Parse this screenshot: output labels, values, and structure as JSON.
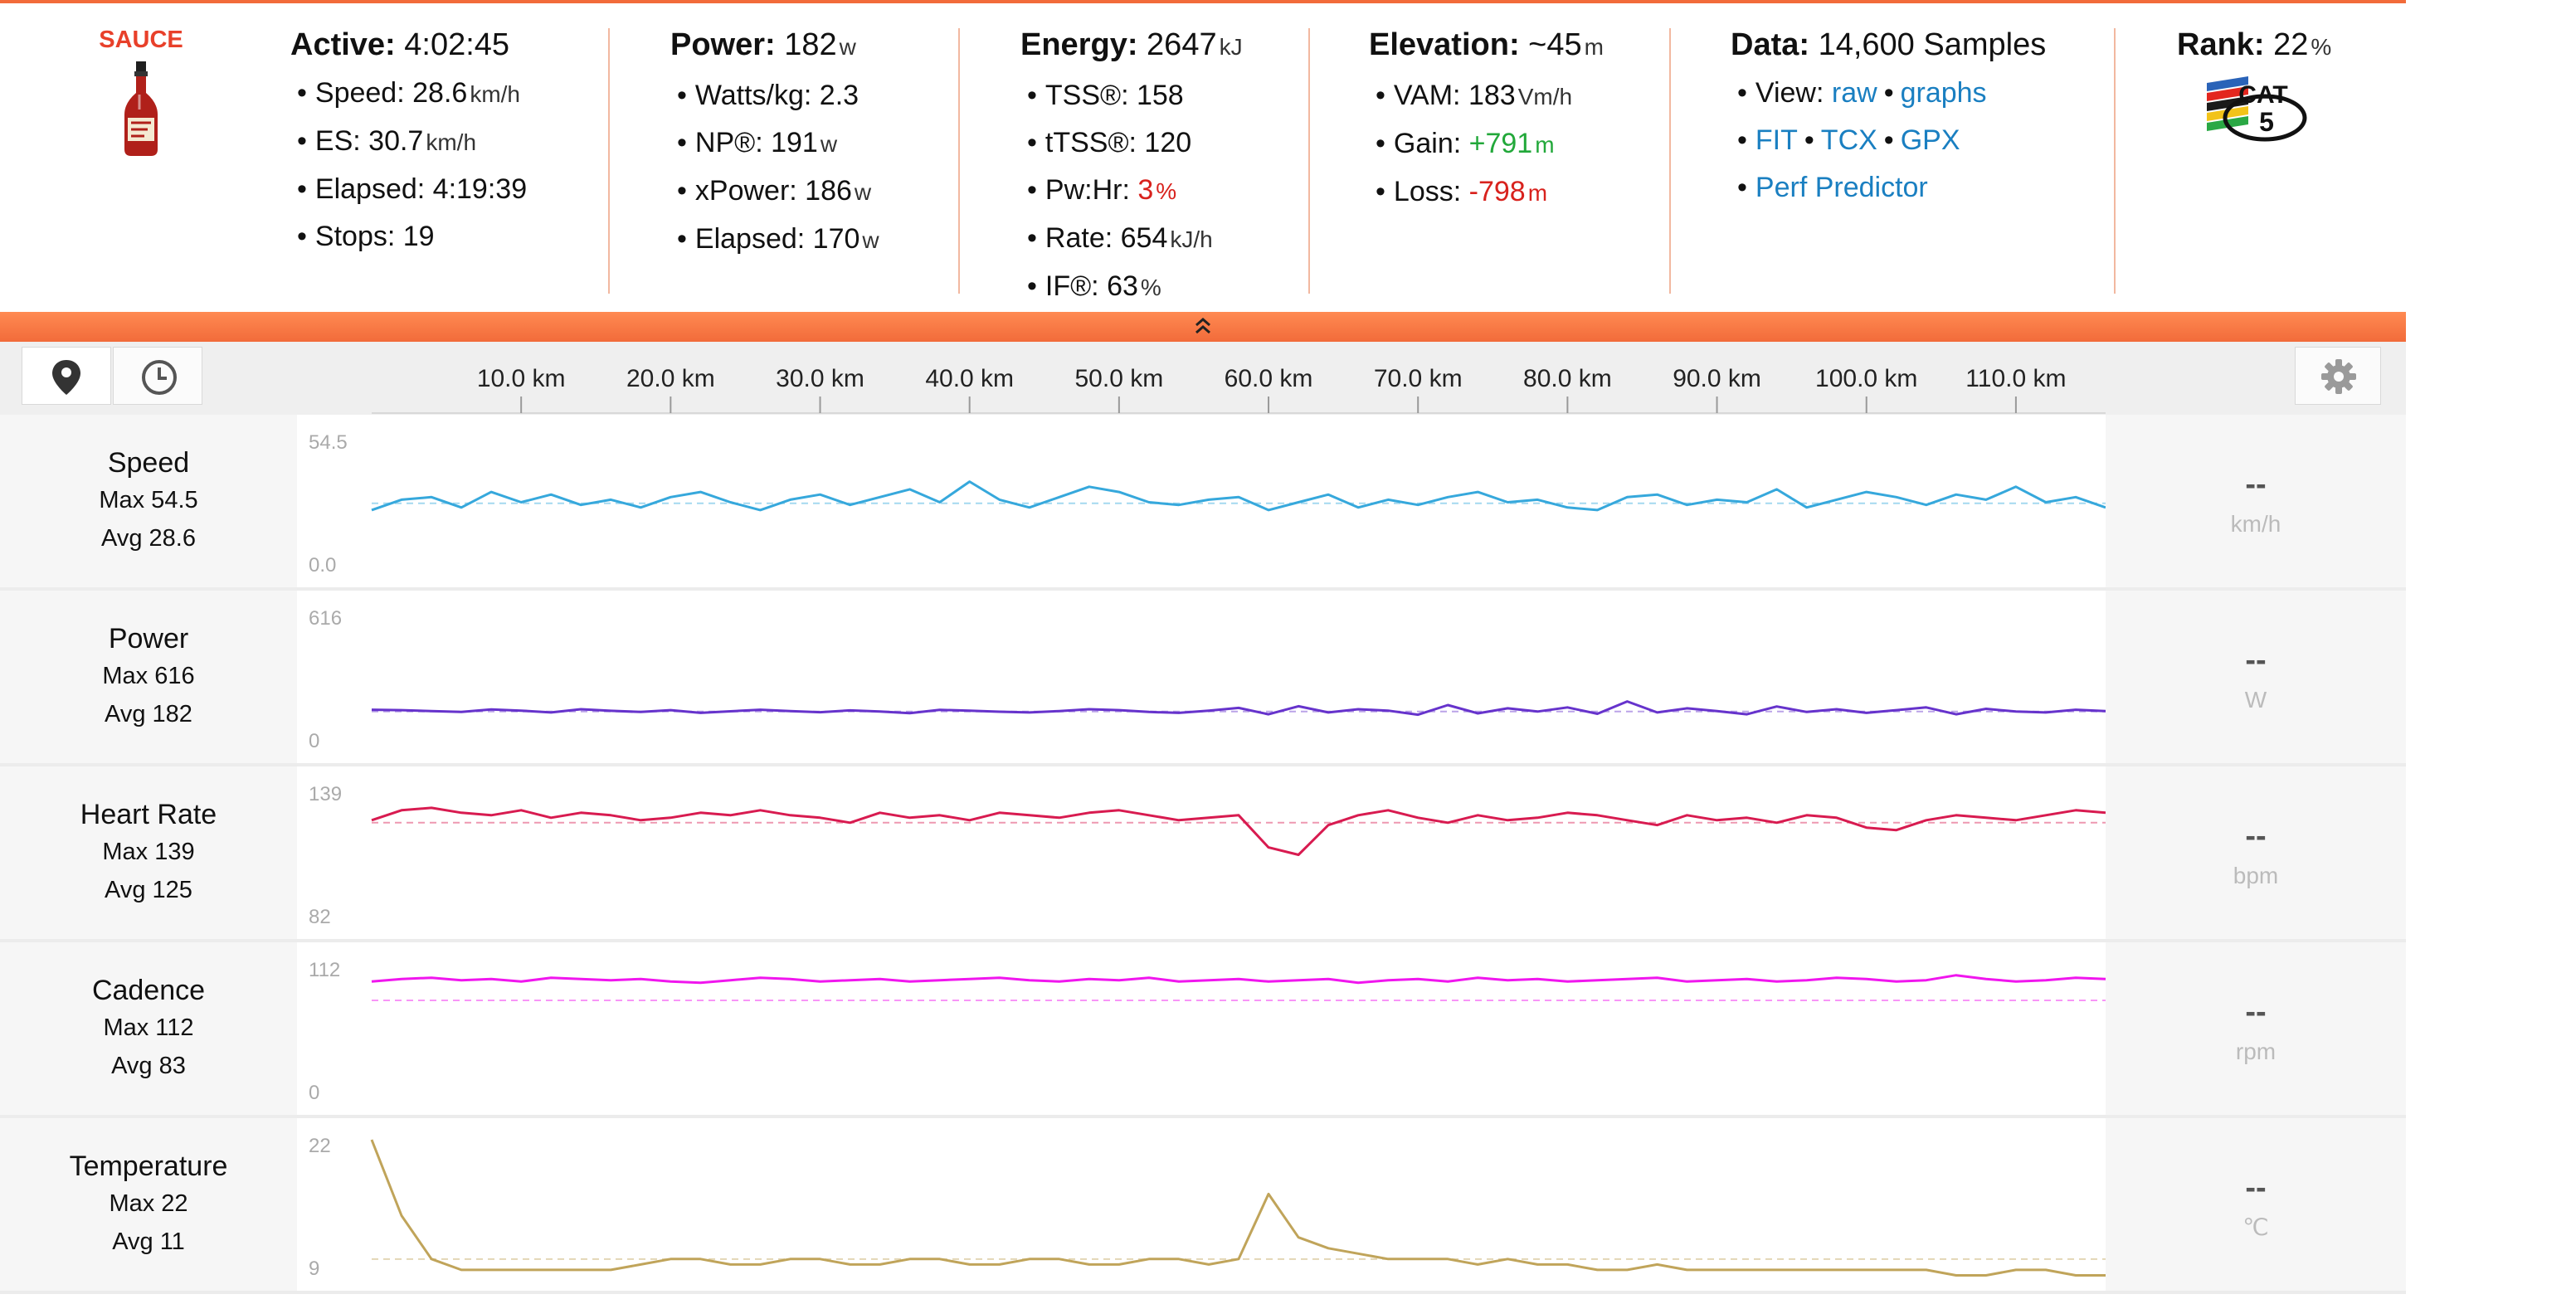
{
  "header": {
    "logo_text": "SAUCE",
    "groups": [
      {
        "id": "active",
        "label": "Active:",
        "value": "4:02:45",
        "unit": "",
        "items": [
          {
            "text": "Speed: ",
            "value": "28.6",
            "unit": "km/h"
          },
          {
            "text": "ES: ",
            "value": "30.7",
            "unit": "km/h"
          },
          {
            "text": "Elapsed: ",
            "value": "4:19:39",
            "unit": ""
          },
          {
            "text": "Stops: ",
            "value": "19",
            "unit": ""
          }
        ]
      },
      {
        "id": "power",
        "label": "Power:",
        "value": "182",
        "unit": "w",
        "items": [
          {
            "text": "Watts/kg: ",
            "value": "2.3",
            "unit": ""
          },
          {
            "text": "NP®: ",
            "value": "191",
            "unit": "w"
          },
          {
            "text": "xPower: ",
            "value": "186",
            "unit": "w"
          },
          {
            "text": "Elapsed: ",
            "value": "170",
            "unit": "w"
          }
        ]
      },
      {
        "id": "energy",
        "label": "Energy:",
        "value": "2647",
        "unit": "kJ",
        "items": [
          {
            "text": "TSS®: ",
            "value": "158",
            "unit": ""
          },
          {
            "text": "tTSS®: ",
            "value": "120",
            "unit": ""
          },
          {
            "text": "Pw:Hr: ",
            "value": "3",
            "unit": "%",
            "tone": "neg"
          },
          {
            "text": "Rate: ",
            "value": "654",
            "unit": "kJ/h"
          },
          {
            "text": "IF®: ",
            "value": "63",
            "unit": "%"
          }
        ]
      },
      {
        "id": "elevation",
        "label": "Elevation:",
        "value": "~45",
        "unit": "m",
        "items": [
          {
            "text": "VAM: ",
            "value": "183",
            "unit": "Vm/h"
          },
          {
            "text": "Gain: ",
            "value": "+791",
            "unit": "m",
            "tone": "pos"
          },
          {
            "text": "Loss: ",
            "value": "-798",
            "unit": "m",
            "tone": "neg"
          }
        ]
      }
    ],
    "data_group": {
      "label": "Data:",
      "value": "14,600 Samples",
      "view_prefix": "View: ",
      "view_raw": "raw",
      "view_graphs": "graphs",
      "fmt_fit": "FIT",
      "fmt_tcx": "TCX",
      "fmt_gpx": "GPX",
      "perf_predictor": "Perf Predictor"
    },
    "rank": {
      "label": "Rank:",
      "value": "22",
      "unit": "%",
      "badge_text": "CAT",
      "badge_num": "5"
    }
  },
  "colors": {
    "accent": "#f26b3a",
    "speed": "#36a8dc",
    "power": "#6633cc",
    "heart": "#d81b50",
    "cadence": "#f016ee",
    "temperature": "#c0a45a",
    "link": "#1a7fc1",
    "positive": "#22a83a",
    "negative": "#d8221d"
  },
  "toolbar": {
    "map_icon": "map-pin-icon",
    "time_icon": "clock-icon",
    "settings_icon": "gear-icon"
  },
  "rows": [
    {
      "key": "speed",
      "title": "Speed",
      "max_text": "Max 54.5",
      "avg_text": "Avg 28.6",
      "axis_max": "54.5",
      "axis_min": "0.0",
      "readout": "--",
      "unit": "km/h"
    },
    {
      "key": "power",
      "title": "Power",
      "max_text": "Max 616",
      "avg_text": "Avg 182",
      "axis_max": "616",
      "axis_min": "0",
      "readout": "--",
      "unit": "W"
    },
    {
      "key": "heart",
      "title": "Heart Rate",
      "max_text": "Max 139",
      "avg_text": "Avg 125",
      "axis_max": "139",
      "axis_min": "82",
      "readout": "--",
      "unit": "bpm"
    },
    {
      "key": "cadence",
      "title": "Cadence",
      "max_text": "Max 112",
      "avg_text": "Avg 83",
      "axis_max": "112",
      "axis_min": "0",
      "readout": "--",
      "unit": "rpm"
    },
    {
      "key": "temperature",
      "title": "Temperature",
      "max_text": "Max 22",
      "avg_text": "Avg 11",
      "axis_max": "22",
      "axis_min": "9",
      "readout": "--",
      "unit": "℃"
    }
  ],
  "chart_data": {
    "type": "line",
    "x_label_ticks": [
      "10.0 km",
      "20.0 km",
      "30.0 km",
      "40.0 km",
      "50.0 km",
      "60.0 km",
      "70.0 km",
      "80.0 km",
      "90.0 km",
      "100.0 km",
      "110.0 km"
    ],
    "x_ticks": [
      10,
      20,
      30,
      40,
      50,
      60,
      70,
      80,
      90,
      100,
      110
    ],
    "xlim": [
      0,
      116
    ],
    "x": [
      0,
      2,
      4,
      6,
      8,
      10,
      12,
      14,
      16,
      18,
      20,
      22,
      24,
      26,
      28,
      30,
      32,
      34,
      36,
      38,
      40,
      42,
      44,
      46,
      48,
      50,
      52,
      54,
      56,
      58,
      60,
      62,
      64,
      66,
      68,
      70,
      72,
      74,
      76,
      78,
      80,
      82,
      84,
      86,
      88,
      90,
      92,
      94,
      96,
      98,
      100,
      102,
      104,
      106,
      108,
      110,
      112,
      114,
      116
    ],
    "series": [
      {
        "key": "speed",
        "ylim": [
          0,
          54.5
        ],
        "avg": 28.6,
        "values": [
          26,
          30,
          31,
          27,
          33,
          29,
          32,
          28,
          30,
          27,
          31,
          33,
          29,
          26,
          30,
          32,
          28,
          31,
          34,
          29,
          37,
          30,
          27,
          31,
          35,
          33,
          29,
          28,
          30,
          31,
          26,
          29,
          32,
          27,
          30,
          28,
          31,
          33,
          29,
          30,
          27,
          26,
          31,
          32,
          28,
          30,
          29,
          34,
          27,
          30,
          33,
          31,
          28,
          32,
          30,
          35,
          29,
          31,
          27
        ]
      },
      {
        "key": "power",
        "ylim": [
          0,
          616
        ],
        "avg": 182,
        "values": [
          190,
          188,
          184,
          180,
          191,
          186,
          178,
          192,
          185,
          180,
          188,
          176,
          183,
          190,
          184,
          179,
          187,
          182,
          175,
          189,
          186,
          181,
          178,
          184,
          192,
          188,
          180,
          176,
          186,
          198,
          170,
          205,
          178,
          192,
          186,
          168,
          210,
          174,
          196,
          182,
          200,
          172,
          226,
          178,
          196,
          184,
          170,
          204,
          180,
          192,
          176,
          188,
          200,
          170,
          194,
          182,
          178,
          190,
          184
        ]
      },
      {
        "key": "heart",
        "ylim": [
          82,
          139
        ],
        "avg": 125,
        "values": [
          126,
          130,
          131,
          129,
          128,
          130,
          127,
          129,
          128,
          126,
          127,
          129,
          128,
          130,
          128,
          127,
          125,
          129,
          127,
          128,
          126,
          129,
          128,
          127,
          129,
          130,
          128,
          126,
          127,
          128,
          115,
          112,
          124,
          128,
          130,
          127,
          125,
          128,
          126,
          127,
          129,
          128,
          126,
          124,
          128,
          126,
          127,
          125,
          128,
          127,
          123,
          122,
          126,
          128,
          127,
          126,
          128,
          130,
          129
        ]
      },
      {
        "key": "cadence",
        "ylim": [
          0,
          112
        ],
        "avg": 83,
        "values": [
          98,
          100,
          101,
          99,
          100,
          98,
          101,
          100,
          99,
          100,
          98,
          97,
          99,
          101,
          100,
          98,
          99,
          100,
          98,
          99,
          100,
          101,
          99,
          98,
          100,
          99,
          101,
          98,
          99,
          100,
          98,
          99,
          100,
          97,
          99,
          100,
          98,
          101,
          99,
          100,
          98,
          99,
          100,
          101,
          98,
          99,
          100,
          98,
          99,
          101,
          100,
          98,
          99,
          103,
          100,
          98,
          99,
          101,
          100
        ]
      },
      {
        "key": "temperature",
        "ylim": [
          9,
          22
        ],
        "avg": 11,
        "values": [
          22,
          15,
          11,
          10,
          10,
          10,
          10,
          10,
          10,
          10.5,
          11,
          11,
          10.5,
          10.5,
          11,
          11,
          10.5,
          10.5,
          11,
          11,
          10.5,
          10.5,
          11,
          11,
          10.5,
          10.5,
          11,
          11,
          10.5,
          11,
          17,
          13,
          12,
          11.5,
          11,
          11,
          11,
          10.5,
          11,
          10.5,
          10.5,
          10,
          10,
          10.5,
          10,
          10,
          10,
          10,
          10,
          10,
          10,
          10,
          10,
          9.5,
          9.5,
          10,
          10,
          9.5,
          9.5
        ]
      }
    ]
  }
}
